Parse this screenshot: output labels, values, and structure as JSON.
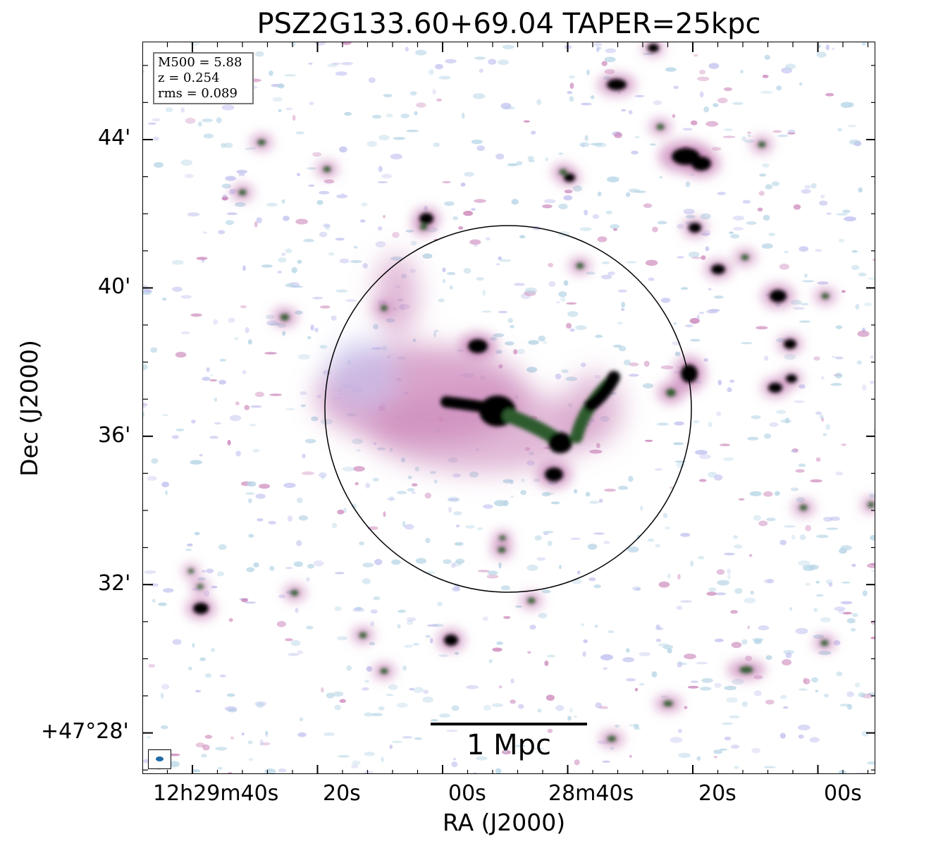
{
  "title": "PSZ2G133.60+69.04 TAPER=25kpc",
  "axes": {
    "xlabel": "RA (J2000)",
    "ylabel": "Dec (J2000)",
    "x_ticks": [
      "12h29m40s",
      "20s",
      "00s",
      "28m40s",
      "20s",
      "00s"
    ],
    "y_ticks": [
      "44'",
      "40'",
      "36'",
      "32'",
      "+47°28'"
    ]
  },
  "info": {
    "line1": "M500 = 5.88",
    "line2": "z = 0.254",
    "line3": "rms = 0.089"
  },
  "scalebar": {
    "label": "1 Mpc"
  },
  "colors": {
    "faint": "#b8d6e6",
    "low": "#c3c3f0",
    "mid": "#cc88bb",
    "high": "#2e5c2e",
    "peak": "#000000",
    "beam": "#1f6aa5"
  },
  "icons": {
    "beam": "beam-ellipse-icon"
  }
}
